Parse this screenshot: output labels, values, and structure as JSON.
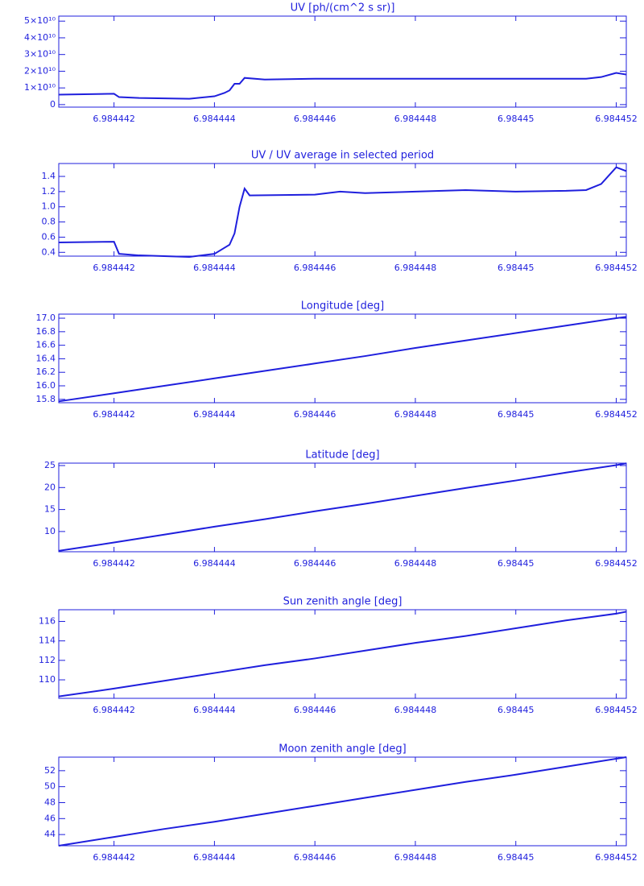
{
  "chart_data": [
    {
      "type": "line",
      "title": "UV [ph/(cm^2 s sr)]",
      "color": "#1f1fdd",
      "x": [
        6.9844409,
        6.984442,
        6.9844421,
        6.9844425,
        6.9844435,
        6.984444,
        6.9844442,
        6.9844443,
        6.9844444,
        6.9844445,
        6.9844446,
        6.984445,
        6.984446,
        6.984448,
        6.98445,
        6.9844514,
        6.9844517,
        6.984452,
        6.9844522
      ],
      "values": [
        6000000000.0,
        6500000000.0,
        4500000000.0,
        4000000000.0,
        3500000000.0,
        5000000000.0,
        7000000000.0,
        8500000000.0,
        12500000000.0,
        12500000000.0,
        16000000000.0,
        15000000000.0,
        15500000000.0,
        15500000000.0,
        15500000000.0,
        15500000000.0,
        16500000000.0,
        19000000000.0,
        18000000000.0
      ],
      "xlim": [
        6.9844409,
        6.9844522
      ],
      "xticks": [
        6.984442,
        6.984444,
        6.984446,
        6.984448,
        6.98445,
        6.984452
      ],
      "ylim": [
        -1500000000.0,
        53000000000.0
      ],
      "yticks": [
        0,
        {
          "value": 10000000000.0,
          "label": "1×10¹⁰"
        },
        {
          "value": 20000000000.0,
          "label": "2×10¹⁰"
        },
        {
          "value": 30000000000.0,
          "label": "3×10¹⁰"
        },
        {
          "value": 40000000000.0,
          "label": "4×10¹⁰"
        },
        {
          "value": 50000000000.0,
          "label": "5×10¹⁰"
        }
      ]
    },
    {
      "type": "line",
      "title": "UV / UV average in selected period",
      "color": "#1f1fdd",
      "x": [
        6.9844409,
        6.984442,
        6.9844421,
        6.9844425,
        6.9844435,
        6.984444,
        6.9844443,
        6.9844444,
        6.9844445,
        6.9844446,
        6.9844447,
        6.984446,
        6.9844465,
        6.984447,
        6.984448,
        6.984449,
        6.98445,
        6.984451,
        6.9844514,
        6.9844517,
        6.984452,
        6.9844522
      ],
      "values": [
        0.53,
        0.54,
        0.38,
        0.36,
        0.34,
        0.38,
        0.5,
        0.65,
        1.0,
        1.24,
        1.15,
        1.16,
        1.2,
        1.18,
        1.2,
        1.22,
        1.2,
        1.21,
        1.22,
        1.3,
        1.52,
        1.47
      ],
      "xlim": [
        6.9844409,
        6.9844522
      ],
      "xticks": [
        6.984442,
        6.984444,
        6.984446,
        6.984448,
        6.98445,
        6.984452
      ],
      "ylim": [
        0.35,
        1.57
      ],
      "yticks": [
        0.4,
        0.6,
        0.8,
        {
          "value": 1.0,
          "label": "1.0"
        },
        1.2,
        1.4
      ]
    },
    {
      "type": "line",
      "title": "Longitude [deg]",
      "color": "#1f1fdd",
      "x": [
        6.9844409,
        6.984442,
        6.984443,
        6.984444,
        6.984445,
        6.984446,
        6.984447,
        6.984448,
        6.984449,
        6.98445,
        6.984451,
        6.984452,
        6.9844522
      ],
      "values": [
        15.77,
        15.89,
        16.0,
        16.11,
        16.22,
        16.33,
        16.44,
        16.56,
        16.67,
        16.78,
        16.89,
        17.0,
        17.02
      ],
      "xlim": [
        6.9844409,
        6.9844522
      ],
      "xticks": [
        6.984442,
        6.984444,
        6.984446,
        6.984448,
        6.98445,
        6.984452
      ],
      "ylim": [
        15.75,
        17.06
      ],
      "yticks": [
        15.8,
        {
          "value": 16.0,
          "label": "16.0"
        },
        16.2,
        16.4,
        16.6,
        16.8,
        {
          "value": 17.0,
          "label": "17.0"
        }
      ]
    },
    {
      "type": "line",
      "title": "Latitude [deg]",
      "color": "#1f1fdd",
      "x": [
        6.9844409,
        6.984442,
        6.984443,
        6.984444,
        6.984445,
        6.984446,
        6.984447,
        6.984448,
        6.984449,
        6.98445,
        6.984451,
        6.984452,
        6.9844522
      ],
      "values": [
        5.6,
        7.5,
        9.3,
        11.1,
        12.8,
        14.6,
        16.3,
        18.1,
        19.9,
        21.6,
        23.4,
        25.1,
        25.5
      ],
      "xlim": [
        6.9844409,
        6.9844522
      ],
      "xticks": [
        6.984442,
        6.984444,
        6.984446,
        6.984448,
        6.98445,
        6.984452
      ],
      "ylim": [
        5.4,
        25.55
      ],
      "yticks": [
        10,
        15,
        20,
        25
      ]
    },
    {
      "type": "line",
      "title": "Sun zenith angle [deg]",
      "color": "#1f1fdd",
      "x": [
        6.9844409,
        6.984442,
        6.984443,
        6.984444,
        6.984445,
        6.984446,
        6.984447,
        6.984448,
        6.984449,
        6.98445,
        6.984451,
        6.984452,
        6.9844522
      ],
      "values": [
        108.3,
        109.1,
        109.9,
        110.7,
        111.5,
        112.2,
        113.0,
        113.8,
        114.5,
        115.3,
        116.1,
        116.8,
        117.0
      ],
      "xlim": [
        6.9844409,
        6.9844522
      ],
      "xticks": [
        6.984442,
        6.984444,
        6.984446,
        6.984448,
        6.98445,
        6.984452
      ],
      "ylim": [
        108.1,
        117.2
      ],
      "yticks": [
        110,
        112,
        114,
        116
      ]
    },
    {
      "type": "line",
      "title": "Moon zenith angle [deg]",
      "color": "#1f1fdd",
      "x": [
        6.9844409,
        6.984442,
        6.984443,
        6.984444,
        6.984445,
        6.984446,
        6.984447,
        6.984448,
        6.984449,
        6.98445,
        6.984451,
        6.984452,
        6.9844522
      ],
      "values": [
        42.6,
        43.7,
        44.7,
        45.6,
        46.6,
        47.6,
        48.6,
        49.6,
        50.6,
        51.5,
        52.5,
        53.5,
        53.7
      ],
      "xlim": [
        6.9844409,
        6.9844522
      ],
      "xticks": [
        6.984442,
        6.984444,
        6.984446,
        6.984448,
        6.98445,
        6.984452
      ],
      "ylim": [
        42.6,
        53.7
      ],
      "yticks": [
        44,
        46,
        48,
        50,
        52
      ]
    }
  ]
}
